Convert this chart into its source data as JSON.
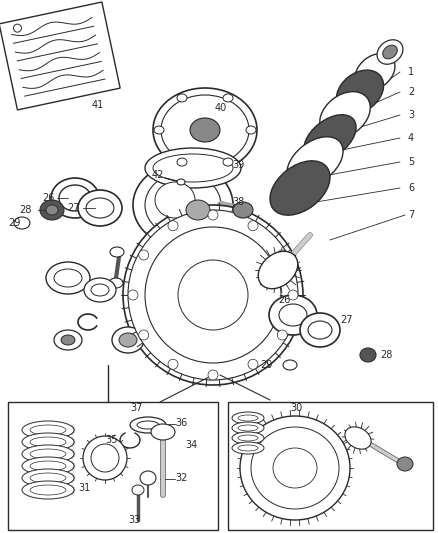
{
  "bg_color": "#ffffff",
  "fig_width": 4.38,
  "fig_height": 5.33,
  "dpi": 100,
  "gray": "#2a2a2a",
  "lgray": "#888888",
  "mgray": "#555555"
}
